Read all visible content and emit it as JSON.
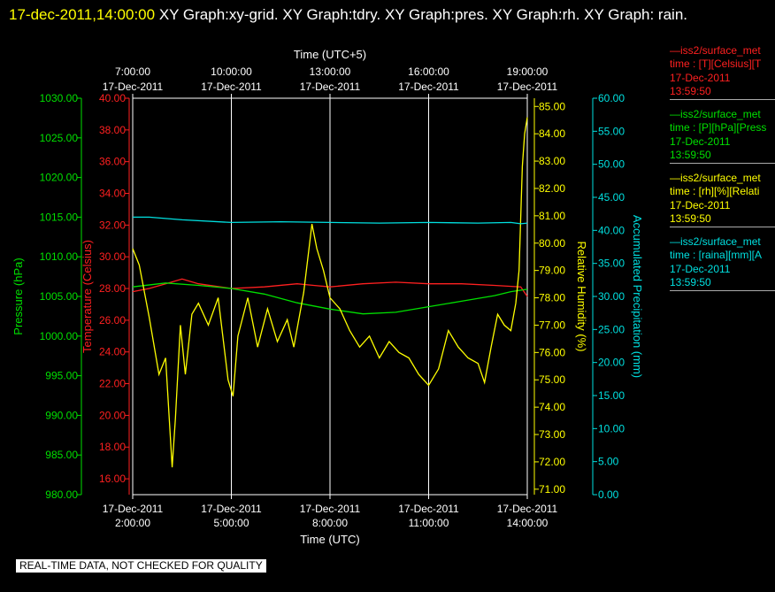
{
  "header": {
    "timestamp": "17-dec-2011,14:00:00",
    "rest": " XY Graph:xy-grid.  XY Graph:tdry.  XY Graph:pres.  XY Graph:rh.  XY Graph: rain."
  },
  "notice": "REAL-TIME DATA, NOT CHECKED FOR QUALITY",
  "legend": [
    {
      "line1": "—iss2/surface_met",
      "line2": "time : [T][Celsius][T",
      "line3": "17-Dec-2011",
      "line4": "13:59:50",
      "color": "#ff2020"
    },
    {
      "line1": "—iss2/surface_met",
      "line2": "time : [P][hPa][Press",
      "line3": "17-Dec-2011",
      "line4": "13:59:50",
      "color": "#00e000"
    },
    {
      "line1": "—iss2/surface_met",
      "line2": "time : [rh][%][Relati",
      "line3": "17-Dec-2011",
      "line4": "13:59:50",
      "color": "#ffff00"
    },
    {
      "line1": "—iss2/surface_met",
      "line2": "time : [raina][mm][A",
      "line3": "17-Dec-2011",
      "line4": "13:59:50",
      "color": "#00e0e0"
    }
  ],
  "chart_data": {
    "type": "line",
    "top_axis": {
      "label": "Time (UTC+5)",
      "ticks": [
        [
          "7:00:00",
          "17-Dec-2011"
        ],
        [
          "10:00:00",
          "17-Dec-2011"
        ],
        [
          "13:00:00",
          "17-Dec-2011"
        ],
        [
          "16:00:00",
          "17-Dec-2011"
        ],
        [
          "19:00:00",
          "17-Dec-2011"
        ]
      ]
    },
    "bottom_axis": {
      "label": "Time (UTC)",
      "ticks": [
        [
          "17-Dec-2011",
          "2:00:00"
        ],
        [
          "17-Dec-2011",
          "5:00:00"
        ],
        [
          "17-Dec-2011",
          "8:00:00"
        ],
        [
          "17-Dec-2011",
          "11:00:00"
        ],
        [
          "17-Dec-2011",
          "14:00:00"
        ]
      ],
      "xlim": [
        2,
        14
      ]
    },
    "pressure": {
      "label": "Pressure (hPa)",
      "color": "#00e000",
      "ylim": [
        980,
        1030
      ],
      "ticks": [
        "980.00",
        "985.00",
        "990.00",
        "995.00",
        "1000.00",
        "1005.00",
        "1010.00",
        "1015.00",
        "1020.00",
        "1025.00",
        "1030.00"
      ]
    },
    "temperature": {
      "label": "Temperature (Celsius)",
      "color": "#ff2020",
      "ylim": [
        15,
        40
      ],
      "ticks": [
        "16.00",
        "18.00",
        "20.00",
        "22.00",
        "24.00",
        "26.00",
        "28.00",
        "30.00",
        "32.00",
        "34.00",
        "36.00",
        "38.00",
        "40.00"
      ]
    },
    "humidity": {
      "label": "Relative Humidity (%)",
      "color": "#ffff00",
      "ylim": [
        70.8,
        85.3
      ],
      "ticks": [
        "71.00",
        "72.00",
        "73.00",
        "74.00",
        "75.00",
        "76.00",
        "77.00",
        "78.00",
        "79.00",
        "80.00",
        "81.00",
        "82.00",
        "83.00",
        "84.00",
        "85.00"
      ]
    },
    "rain": {
      "label": "Accumulated Precipitation (mm)",
      "color": "#00e0e0",
      "ylim": [
        0,
        60
      ],
      "ticks": [
        "0.00",
        "5.00",
        "10.00",
        "15.00",
        "20.00",
        "25.00",
        "30.00",
        "35.00",
        "40.00",
        "45.00",
        "50.00",
        "55.00",
        "60.00"
      ]
    },
    "series": [
      {
        "name": "T",
        "axis": "temperature",
        "x": [
          2.0,
          2.5,
          3.0,
          3.5,
          4.0,
          5.0,
          6.0,
          7.0,
          7.5,
          8.0,
          9.0,
          10.0,
          11.0,
          12.0,
          13.0,
          13.8,
          14.0
        ],
        "y": [
          27.8,
          28.0,
          28.3,
          28.6,
          28.3,
          28.0,
          28.1,
          28.3,
          28.2,
          28.1,
          28.3,
          28.4,
          28.3,
          28.3,
          28.2,
          28.1,
          27.5
        ]
      },
      {
        "name": "P",
        "axis": "pressure",
        "x": [
          2.0,
          3.0,
          4.0,
          5.0,
          6.0,
          7.0,
          8.0,
          9.0,
          10.0,
          11.0,
          12.0,
          13.0,
          13.5,
          14.0
        ],
        "y": [
          1006.2,
          1006.7,
          1006.4,
          1006.0,
          1005.3,
          1004.2,
          1003.4,
          1002.8,
          1003.0,
          1003.7,
          1004.4,
          1005.1,
          1005.6,
          1005.9
        ]
      },
      {
        "name": "rh",
        "axis": "humidity",
        "x": [
          2.0,
          2.2,
          2.5,
          2.8,
          3.0,
          3.2,
          3.3,
          3.45,
          3.6,
          3.8,
          4.0,
          4.3,
          4.6,
          4.9,
          5.05,
          5.2,
          5.5,
          5.8,
          6.1,
          6.4,
          6.7,
          6.9,
          7.2,
          7.45,
          7.6,
          7.8,
          8.0,
          8.3,
          8.6,
          8.9,
          9.2,
          9.5,
          9.8,
          10.1,
          10.4,
          10.7,
          11.0,
          11.3,
          11.6,
          11.9,
          12.2,
          12.5,
          12.7,
          12.9,
          13.1,
          13.3,
          13.5,
          13.65,
          13.75,
          13.85,
          13.92,
          14.0
        ],
        "y": [
          79.8,
          79.2,
          77.3,
          75.2,
          75.8,
          71.8,
          73.6,
          77.0,
          75.2,
          77.4,
          77.8,
          77.0,
          78.0,
          75.0,
          74.4,
          76.6,
          78.0,
          76.2,
          77.6,
          76.4,
          77.2,
          76.2,
          78.2,
          80.7,
          79.8,
          79.0,
          78.0,
          77.6,
          76.8,
          76.2,
          76.6,
          75.8,
          76.4,
          76.0,
          75.8,
          75.2,
          74.8,
          75.4,
          76.8,
          76.2,
          75.8,
          75.6,
          74.9,
          76.2,
          77.4,
          77.0,
          76.8,
          77.8,
          79.0,
          82.8,
          84.0,
          84.6
        ]
      },
      {
        "name": "raina",
        "axis": "rain",
        "x": [
          2.0,
          2.5,
          3.5,
          5.0,
          6.5,
          8.0,
          9.5,
          11.0,
          12.5,
          13.5,
          13.8,
          14.0
        ],
        "y": [
          42.0,
          42.0,
          41.6,
          41.2,
          41.3,
          41.2,
          41.1,
          41.2,
          41.1,
          41.2,
          41.0,
          41.1
        ]
      }
    ]
  }
}
